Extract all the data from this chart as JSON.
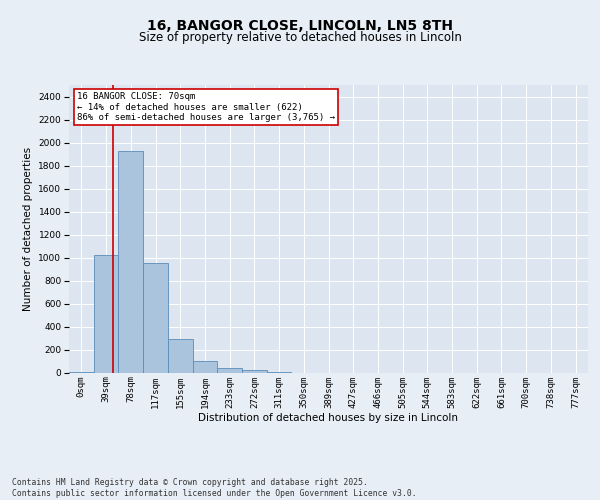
{
  "title_line1": "16, BANGOR CLOSE, LINCOLN, LN5 8TH",
  "title_line2": "Size of property relative to detached houses in Lincoln",
  "xlabel": "Distribution of detached houses by size in Lincoln",
  "ylabel": "Number of detached properties",
  "bin_labels": [
    "0sqm",
    "39sqm",
    "78sqm",
    "117sqm",
    "155sqm",
    "194sqm",
    "233sqm",
    "272sqm",
    "311sqm",
    "350sqm",
    "389sqm",
    "427sqm",
    "466sqm",
    "505sqm",
    "544sqm",
    "583sqm",
    "622sqm",
    "661sqm",
    "700sqm",
    "738sqm",
    "777sqm"
  ],
  "bar_values": [
    5,
    1020,
    1930,
    950,
    290,
    100,
    40,
    20,
    5,
    0,
    0,
    0,
    0,
    0,
    0,
    0,
    0,
    0,
    0,
    0,
    0
  ],
  "bar_color": "#aac4de",
  "bar_edge_color": "#5b8db8",
  "ylim": [
    0,
    2500
  ],
  "yticks": [
    0,
    200,
    400,
    600,
    800,
    1000,
    1200,
    1400,
    1600,
    1800,
    2000,
    2200,
    2400
  ],
  "red_line_x": 1.8,
  "annotation_text": "16 BANGOR CLOSE: 70sqm\n← 14% of detached houses are smaller (622)\n86% of semi-detached houses are larger (3,765) →",
  "annotation_box_color": "#ffffff",
  "annotation_edge_color": "#cc0000",
  "vline_color": "#cc0000",
  "background_color": "#e8eef5",
  "plot_bg_color": "#dde6f0",
  "grid_color": "#ffffff",
  "footer_text": "Contains HM Land Registry data © Crown copyright and database right 2025.\nContains public sector information licensed under the Open Government Licence v3.0.",
  "title_fontsize": 10,
  "subtitle_fontsize": 8.5,
  "label_fontsize": 7.5,
  "tick_fontsize": 6.5,
  "annotation_fontsize": 6.5,
  "footer_fontsize": 5.8
}
